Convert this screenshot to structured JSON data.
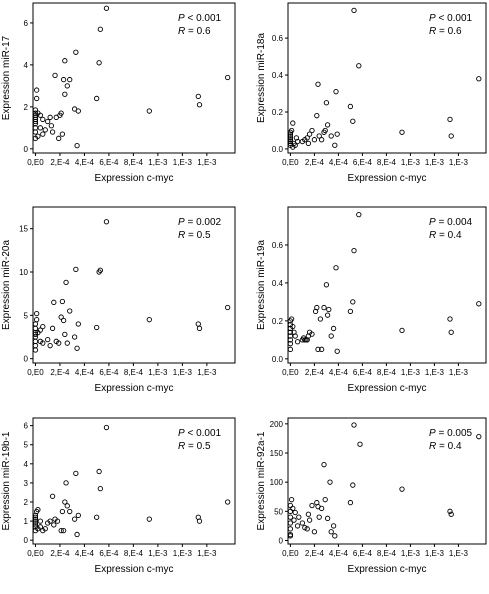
{
  "chart_data": [
    {
      "type": "scatter",
      "xlabel": "Expression c-myc",
      "ylabel": "Expression miR-17",
      "x_tick_labels": [
        "0,E0",
        "2,E-4",
        "4,E-4",
        "6,E-4",
        "8,E-4",
        "1,E-3",
        "1,E-3",
        "1,E-3"
      ],
      "xlim": [
        -2e-05,
        0.00163
      ],
      "ylim": [
        -0.2,
        6.95
      ],
      "yticks": [
        0,
        2,
        4,
        6
      ],
      "p_value": "< 0.001",
      "r_value": "= 0.6",
      "points": [
        [
          0.0,
          0.5
        ],
        [
          0.0,
          0.8
        ],
        [
          0.0,
          1.0
        ],
        [
          0.0,
          1.2
        ],
        [
          0.0,
          1.3
        ],
        [
          0.0,
          1.4
        ],
        [
          0.0,
          1.5
        ],
        [
          0.0,
          1.6
        ],
        [
          0.0,
          1.7
        ],
        [
          0.0,
          1.85
        ],
        [
          1e-05,
          2.4
        ],
        [
          1e-05,
          2.8
        ],
        [
          2e-05,
          0.6
        ],
        [
          2e-05,
          1.7
        ],
        [
          4e-05,
          1.0
        ],
        [
          4e-05,
          1.6
        ],
        [
          6e-05,
          1.4
        ],
        [
          6e-05,
          0.7
        ],
        [
          8e-05,
          0.9
        ],
        [
          0.0001,
          1.3
        ],
        [
          0.00012,
          1.5
        ],
        [
          0.00013,
          1.1
        ],
        [
          0.00014,
          0.8
        ],
        [
          0.00016,
          3.5
        ],
        [
          0.00017,
          1.5
        ],
        [
          0.00019,
          0.5
        ],
        [
          0.0002,
          1.6
        ],
        [
          0.00021,
          1.7
        ],
        [
          0.00022,
          0.7
        ],
        [
          0.00023,
          3.3
        ],
        [
          0.00024,
          2.6
        ],
        [
          0.00024,
          4.2
        ],
        [
          0.00026,
          3.0
        ],
        [
          0.00028,
          3.3
        ],
        [
          0.00032,
          1.9
        ],
        [
          0.00033,
          4.6
        ],
        [
          0.00034,
          0.15
        ],
        [
          0.00035,
          1.8
        ],
        [
          0.0005,
          2.4
        ],
        [
          0.00052,
          4.1
        ],
        [
          0.00053,
          5.7
        ],
        [
          0.00058,
          6.7
        ],
        [
          0.00093,
          1.8
        ],
        [
          0.00133,
          2.5
        ],
        [
          0.00134,
          2.1
        ],
        [
          0.00157,
          3.4
        ]
      ]
    },
    {
      "type": "scatter",
      "xlabel": "Expression c-myc",
      "ylabel": "Expression miR-18a",
      "x_tick_labels": [
        "0,E0",
        "2,E-4",
        "4,E-4",
        "6,E-4",
        "8,E-4",
        "1,E-3",
        "1,E-3",
        "1,E-3"
      ],
      "xlim": [
        -2e-05,
        0.00163
      ],
      "ylim": [
        -0.022,
        0.79
      ],
      "yticks": [
        0.0,
        0.2,
        0.4,
        0.6
      ],
      "p_value": "< 0.001",
      "r_value": "= 0.6",
      "points": [
        [
          0.0,
          0.02
        ],
        [
          0.0,
          0.03
        ],
        [
          0.0,
          0.04
        ],
        [
          0.0,
          0.05
        ],
        [
          0.0,
          0.06
        ],
        [
          0.0,
          0.07
        ],
        [
          0.0,
          0.08
        ],
        [
          0.0,
          0.09
        ],
        [
          1e-05,
          0.1
        ],
        [
          2e-05,
          0.14
        ],
        [
          2e-05,
          0.01
        ],
        [
          3e-05,
          0.03
        ],
        [
          4e-05,
          0.02
        ],
        [
          5e-05,
          0.06
        ],
        [
          6e-05,
          0.04
        ],
        [
          0.0001,
          0.04
        ],
        [
          0.00012,
          0.05
        ],
        [
          0.00014,
          0.06
        ],
        [
          0.00015,
          0.03
        ],
        [
          0.00016,
          0.08
        ],
        [
          0.00018,
          0.1
        ],
        [
          0.0002,
          0.05
        ],
        [
          0.00022,
          0.18
        ],
        [
          0.00023,
          0.35
        ],
        [
          0.00024,
          0.07
        ],
        [
          0.00026,
          0.05
        ],
        [
          0.00028,
          0.09
        ],
        [
          0.00029,
          0.1
        ],
        [
          0.0003,
          0.25
        ],
        [
          0.00031,
          0.13
        ],
        [
          0.00034,
          0.07
        ],
        [
          0.00037,
          0.02
        ],
        [
          0.00038,
          0.31
        ],
        [
          0.00039,
          0.08
        ],
        [
          0.0005,
          0.23
        ],
        [
          0.00052,
          0.15
        ],
        [
          0.00053,
          0.75
        ],
        [
          0.00057,
          0.45
        ],
        [
          0.00093,
          0.09
        ],
        [
          0.00133,
          0.16
        ],
        [
          0.00134,
          0.07
        ],
        [
          0.00157,
          0.38
        ]
      ]
    },
    {
      "type": "scatter",
      "xlabel": "Expression c-myc",
      "ylabel": "Expression miR-20a",
      "x_tick_labels": [
        "0,E0",
        "2,E-4",
        "4,E-4",
        "6,E-4",
        "8,E-4",
        "1,E-3",
        "1,E-3",
        "1,E-3"
      ],
      "xlim": [
        -2e-05,
        0.00163
      ],
      "ylim": [
        -0.5,
        17.5
      ],
      "yticks": [
        0,
        5,
        10,
        15
      ],
      "p_value": "= 0.002",
      "r_value": "= 0.5",
      "points": [
        [
          0.0,
          1.5
        ],
        [
          0.0,
          2.0
        ],
        [
          0.0,
          2.5
        ],
        [
          0.0,
          3.0
        ],
        [
          0.0,
          3.5
        ],
        [
          0.0,
          4.0
        ],
        [
          0.0,
          1.0
        ],
        [
          0.0,
          2.8
        ],
        [
          1e-05,
          5.2
        ],
        [
          1e-05,
          4.5
        ],
        [
          2e-05,
          3.0
        ],
        [
          4e-05,
          2.0
        ],
        [
          4e-05,
          3.3
        ],
        [
          6e-05,
          1.8
        ],
        [
          6e-05,
          3.7
        ],
        [
          0.0001,
          2.2
        ],
        [
          0.00012,
          1.5
        ],
        [
          0.00014,
          3.5
        ],
        [
          0.00015,
          6.5
        ],
        [
          0.00017,
          2.0
        ],
        [
          0.00019,
          1.8
        ],
        [
          0.00021,
          4.8
        ],
        [
          0.00022,
          6.6
        ],
        [
          0.00023,
          4.4
        ],
        [
          0.00024,
          2.8
        ],
        [
          0.00025,
          8.8
        ],
        [
          0.00026,
          1.8
        ],
        [
          0.00028,
          5.5
        ],
        [
          0.00032,
          2.5
        ],
        [
          0.00033,
          10.3
        ],
        [
          0.00034,
          1.2
        ],
        [
          0.00035,
          4.0
        ],
        [
          0.0005,
          3.6
        ],
        [
          0.00052,
          10.0
        ],
        [
          0.00053,
          10.2
        ],
        [
          0.00058,
          15.8
        ],
        [
          0.00093,
          4.5
        ],
        [
          0.00133,
          4.0
        ],
        [
          0.00134,
          3.5
        ],
        [
          0.00157,
          5.9
        ]
      ]
    },
    {
      "type": "scatter",
      "xlabel": "Expression c-myc",
      "ylabel": "Expression miR-19a",
      "x_tick_labels": [
        "0,E0",
        "2,E-4",
        "4,E-4",
        "6,E-4",
        "8,E-4",
        "1,E-3",
        "1,E-3",
        "1,E-3"
      ],
      "xlim": [
        -2e-05,
        0.00163
      ],
      "ylim": [
        -0.022,
        0.8
      ],
      "yticks": [
        0.0,
        0.2,
        0.4,
        0.6
      ],
      "p_value": "= 0.004",
      "r_value": "= 0.4",
      "points": [
        [
          0.0,
          0.05
        ],
        [
          0.0,
          0.08
        ],
        [
          0.0,
          0.1
        ],
        [
          0.0,
          0.12
        ],
        [
          0.0,
          0.14
        ],
        [
          0.0,
          0.16
        ],
        [
          0.0,
          0.18
        ],
        [
          0.0,
          0.2
        ],
        [
          1e-05,
          0.21
        ],
        [
          2e-05,
          0.17
        ],
        [
          3e-05,
          0.14
        ],
        [
          4e-05,
          0.12
        ],
        [
          6e-05,
          0.09
        ],
        [
          0.0001,
          0.1
        ],
        [
          0.00011,
          0.11
        ],
        [
          0.00012,
          0.1
        ],
        [
          0.00013,
          0.1
        ],
        [
          0.00014,
          0.1
        ],
        [
          0.00015,
          0.12
        ],
        [
          0.00016,
          0.14
        ],
        [
          0.00018,
          0.13
        ],
        [
          0.00021,
          0.25
        ],
        [
          0.00022,
          0.27
        ],
        [
          0.00023,
          0.05
        ],
        [
          0.00025,
          0.21
        ],
        [
          0.00026,
          0.05
        ],
        [
          0.00028,
          0.27
        ],
        [
          0.0003,
          0.39
        ],
        [
          0.00031,
          0.23
        ],
        [
          0.00032,
          0.26
        ],
        [
          0.00034,
          0.12
        ],
        [
          0.00036,
          0.16
        ],
        [
          0.00038,
          0.48
        ],
        [
          0.00039,
          0.04
        ],
        [
          0.0005,
          0.25
        ],
        [
          0.00052,
          0.3
        ],
        [
          0.00053,
          0.57
        ],
        [
          0.00057,
          0.76
        ],
        [
          0.00093,
          0.15
        ],
        [
          0.00133,
          0.21
        ],
        [
          0.00134,
          0.14
        ],
        [
          0.00157,
          0.29
        ]
      ]
    },
    {
      "type": "scatter",
      "xlabel": "Expression c-myc",
      "ylabel": "Expression miR-19b-1",
      "x_tick_labels": [
        "0,E0",
        "2,E-4",
        "4,E-4",
        "6,E-4",
        "8,E-4",
        "1,E-3",
        "1,E-3",
        "1,E-3"
      ],
      "xlim": [
        -2e-05,
        0.00163
      ],
      "ylim": [
        -0.2,
        6.4
      ],
      "yticks": [
        0,
        1,
        2,
        3,
        4,
        5,
        6
      ],
      "p_value": "< 0.001",
      "r_value": "= 0.5",
      "points": [
        [
          0.0,
          0.5
        ],
        [
          0.0,
          0.7
        ],
        [
          0.0,
          0.9
        ],
        [
          0.0,
          1.0
        ],
        [
          0.0,
          1.1
        ],
        [
          0.0,
          1.2
        ],
        [
          0.0,
          1.3
        ],
        [
          0.0,
          0.8
        ],
        [
          1e-05,
          1.5
        ],
        [
          2e-05,
          1.6
        ],
        [
          2e-05,
          0.6
        ],
        [
          4e-05,
          1.0
        ],
        [
          4e-05,
          0.7
        ],
        [
          6e-05,
          0.5
        ],
        [
          8e-05,
          0.6
        ],
        [
          0.0001,
          0.9
        ],
        [
          0.00012,
          1.0
        ],
        [
          0.00014,
          2.3
        ],
        [
          0.00015,
          0.8
        ],
        [
          0.00016,
          1.1
        ],
        [
          0.00018,
          1.0
        ],
        [
          0.00021,
          0.5
        ],
        [
          0.00022,
          1.5
        ],
        [
          0.00023,
          0.5
        ],
        [
          0.00024,
          2.0
        ],
        [
          0.00025,
          3.0
        ],
        [
          0.00026,
          1.8
        ],
        [
          0.00028,
          1.5
        ],
        [
          0.00032,
          1.1
        ],
        [
          0.00033,
          3.5
        ],
        [
          0.00034,
          0.3
        ],
        [
          0.00035,
          1.3
        ],
        [
          0.0005,
          1.2
        ],
        [
          0.00052,
          3.6
        ],
        [
          0.00053,
          2.7
        ],
        [
          0.00058,
          5.9
        ],
        [
          0.00093,
          1.1
        ],
        [
          0.00133,
          1.2
        ],
        [
          0.00134,
          1.0
        ],
        [
          0.00157,
          2.0
        ]
      ]
    },
    {
      "type": "scatter",
      "xlabel": "Expression c-myc",
      "ylabel": "Expression miR-92a-1",
      "x_tick_labels": [
        "0,E0",
        "2,E-4",
        "4,E-4",
        "6,E-4",
        "8,E-4",
        "1,E-3",
        "1,E-3",
        "1,E-3"
      ],
      "xlim": [
        -2e-05,
        0.00163
      ],
      "ylim": [
        -6,
        210
      ],
      "yticks": [
        0,
        50,
        100,
        150,
        200
      ],
      "p_value": "= 0.005",
      "r_value": "= 0.4",
      "points": [
        [
          0.0,
          10
        ],
        [
          0.0,
          20
        ],
        [
          0.0,
          30
        ],
        [
          0.0,
          40
        ],
        [
          0.0,
          50
        ],
        [
          0.0,
          60
        ],
        [
          0.0,
          8
        ],
        [
          1e-05,
          70
        ],
        [
          2e-05,
          55
        ],
        [
          3e-05,
          35
        ],
        [
          4e-05,
          48
        ],
        [
          6e-05,
          25
        ],
        [
          7e-05,
          40
        ],
        [
          0.0001,
          30
        ],
        [
          0.00012,
          22
        ],
        [
          0.00014,
          20
        ],
        [
          0.00015,
          45
        ],
        [
          0.00016,
          35
        ],
        [
          0.00018,
          60
        ],
        [
          0.0002,
          15
        ],
        [
          0.00022,
          65
        ],
        [
          0.00023,
          58
        ],
        [
          0.00024,
          40
        ],
        [
          0.00026,
          55
        ],
        [
          0.00028,
          130
        ],
        [
          0.00029,
          70
        ],
        [
          0.00031,
          38
        ],
        [
          0.00033,
          100
        ],
        [
          0.00034,
          15
        ],
        [
          0.00036,
          25
        ],
        [
          0.00037,
          8
        ],
        [
          0.0005,
          65
        ],
        [
          0.00052,
          95
        ],
        [
          0.00053,
          198
        ],
        [
          0.00058,
          165
        ],
        [
          0.00093,
          88
        ],
        [
          0.00133,
          50
        ],
        [
          0.00134,
          45
        ],
        [
          0.00157,
          178
        ]
      ]
    }
  ]
}
